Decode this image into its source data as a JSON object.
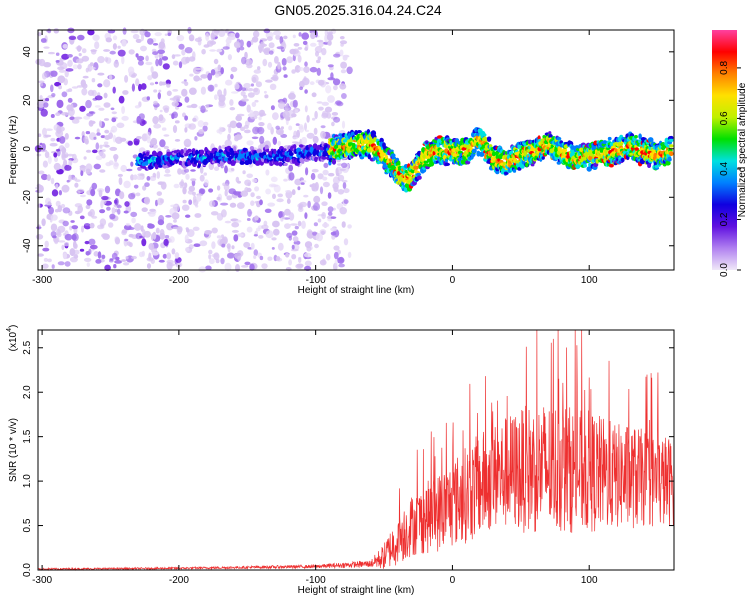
{
  "title": "GN05.2025.316.04.24.C24",
  "chart_data": [
    {
      "type": "heatmap",
      "xlabel": "Height of straight line (km)",
      "ylabel": "Frequency (Hz)",
      "xlim": [
        -303,
        162
      ],
      "ylim": [
        -50,
        49
      ],
      "xticks": [
        -300,
        -200,
        -100,
        0,
        100
      ],
      "yticks": [
        -40,
        -20,
        0,
        20,
        40
      ],
      "noise_region_x": [
        -303,
        -75
      ],
      "ridge": {
        "description": "frequency centerline of high-amplitude band",
        "x": [
          -230,
          -200,
          -160,
          -130,
          -100,
          -85,
          -70,
          -60,
          -50,
          -40,
          -35,
          -30,
          -20,
          -10,
          0,
          10,
          20,
          30,
          40,
          50,
          60,
          70,
          80,
          90,
          100,
          110,
          120,
          130,
          140,
          150,
          160
        ],
        "freq": [
          -5,
          -4,
          -3,
          -3,
          -2,
          0,
          2,
          2,
          -3,
          -10,
          -13,
          -11,
          -3,
          -1,
          -1,
          -1,
          4,
          -4,
          -6,
          -2,
          -1,
          2,
          -2,
          -4,
          -3,
          -2,
          -1,
          1,
          -1,
          -3,
          0
        ]
      },
      "colorbar": {
        "label": "Normalized spectral amplitude",
        "ticks": [
          0.0,
          0.2,
          0.4,
          0.6,
          0.8
        ],
        "range": [
          0,
          0.95
        ],
        "colors": [
          "#f0e8f8",
          "#b080f0",
          "#6010e0",
          "#1000e0",
          "#0080ff",
          "#00e0e0",
          "#00e000",
          "#c0f000",
          "#ffe000",
          "#ff8000",
          "#ff0000",
          "#ff40a0"
        ]
      }
    },
    {
      "type": "line",
      "xlabel": "Height of straight line (km)",
      "ylabel": "SNR (10 * v/v)",
      "yscale_label": "(x10",
      "yscale_exp": "4",
      "xlim": [
        -303,
        162
      ],
      "ylim": [
        0,
        2.7
      ],
      "xticks": [
        -300,
        -200,
        -100,
        0,
        100
      ],
      "yticks": [
        "0.0",
        "0.5",
        "1.0",
        "1.5",
        "2.0",
        "2.5"
      ],
      "ytick_values": [
        0,
        0.5,
        1.0,
        1.5,
        2.0,
        2.5
      ],
      "color": "#ee3030",
      "envelope": {
        "x": [
          -303,
          -200,
          -100,
          -60,
          -50,
          -40,
          -30,
          -20,
          -10,
          0,
          10,
          20,
          30,
          40,
          50,
          60,
          70,
          80,
          90,
          100,
          110,
          120,
          130,
          140,
          150,
          162
        ],
        "mean": [
          0.01,
          0.02,
          0.04,
          0.07,
          0.15,
          0.35,
          0.5,
          0.58,
          0.65,
          0.75,
          0.85,
          0.95,
          1.05,
          1.1,
          1.12,
          1.15,
          1.15,
          1.15,
          1.12,
          1.1,
          1.08,
          1.05,
          1.05,
          1.03,
          1.0,
          1.0
        ],
        "amp": [
          0.01,
          0.01,
          0.02,
          0.04,
          0.15,
          0.3,
          0.35,
          0.4,
          0.45,
          0.5,
          0.55,
          0.6,
          0.6,
          0.65,
          0.7,
          0.75,
          0.75,
          0.75,
          0.7,
          0.7,
          0.65,
          0.6,
          0.6,
          0.55,
          0.55,
          0.5
        ]
      }
    }
  ]
}
